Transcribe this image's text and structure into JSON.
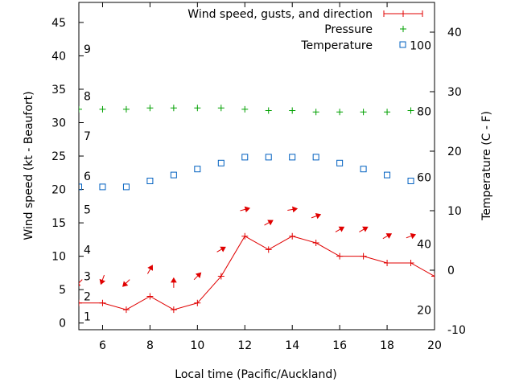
{
  "chart_data": {
    "type": "line",
    "xlabel": "Local time (Pacific/Auckland)",
    "ylabel_left": "Wind speed (kt - Beaufort)",
    "ylabel_right": "Temperature (C - F)",
    "xlim": [
      5,
      20
    ],
    "ylim_left": [
      -1,
      48
    ],
    "ylim_right": [
      -10,
      45
    ],
    "x_ticks": [
      6,
      8,
      10,
      12,
      14,
      16,
      18,
      20
    ],
    "y_left_ticks": [
      0,
      5,
      10,
      15,
      20,
      25,
      30,
      35,
      40,
      45
    ],
    "y_right_ticks": [
      -10,
      0,
      10,
      20,
      30,
      40
    ],
    "beaufort": [
      {
        "label": "1",
        "kt": 1.0
      },
      {
        "label": "2",
        "kt": 4.0
      },
      {
        "label": "3",
        "kt": 7.0
      },
      {
        "label": "4",
        "kt": 11.0
      },
      {
        "label": "5",
        "kt": 17.0
      },
      {
        "label": "6",
        "kt": 22.0
      },
      {
        "label": "7",
        "kt": 28.0
      },
      {
        "label": "8",
        "kt": 34.0
      },
      {
        "label": "9",
        "kt": 41.0
      }
    ],
    "fahrenheit": [
      {
        "label": "20",
        "c": -6.7
      },
      {
        "label": "40",
        "c": 4.4
      },
      {
        "label": "60",
        "c": 15.6
      },
      {
        "label": "80",
        "c": 26.7
      },
      {
        "label": "100",
        "c": 37.8
      }
    ],
    "legend": {
      "wind": "Wind speed, gusts, and direction",
      "pressure": "Pressure",
      "temperature": "Temperature"
    },
    "colors": {
      "wind": "#e00000",
      "pressure": "#00a000",
      "temperature": "#0060c0"
    },
    "wind_speed": {
      "x": [
        5,
        6,
        7,
        8,
        9,
        10,
        11,
        12,
        13,
        14,
        15,
        16,
        17,
        18,
        19,
        20
      ],
      "y": [
        3,
        3,
        2,
        4,
        2,
        3,
        7,
        13,
        11,
        13,
        12,
        10,
        10,
        9,
        9,
        7
      ]
    },
    "wind_direction": {
      "x": [
        5,
        6,
        7,
        8,
        9,
        10,
        11,
        12,
        13,
        14,
        15,
        16,
        17,
        18,
        19
      ],
      "speed_at": [
        6,
        6.5,
        6,
        8,
        6,
        7,
        11,
        17,
        15,
        17,
        16,
        14,
        14,
        13,
        13
      ],
      "angle_deg": [
        225,
        250,
        225,
        60,
        90,
        45,
        30,
        15,
        30,
        10,
        20,
        30,
        30,
        30,
        20
      ]
    },
    "pressure": {
      "x": [
        5,
        6,
        7,
        8,
        9,
        10,
        11,
        12,
        13,
        14,
        15,
        16,
        17,
        18,
        19
      ],
      "y": [
        32,
        32,
        32,
        32.2,
        32.2,
        32.2,
        32.2,
        32,
        31.8,
        31.8,
        31.6,
        31.6,
        31.6,
        31.6,
        31.8
      ]
    },
    "temperature": {
      "x": [
        5,
        6,
        7,
        8,
        9,
        10,
        11,
        12,
        13,
        14,
        15,
        16,
        17,
        18,
        19
      ],
      "y": [
        14,
        14,
        14,
        15,
        16,
        17,
        18,
        19,
        19,
        19,
        19,
        18,
        17,
        16,
        15
      ]
    }
  }
}
